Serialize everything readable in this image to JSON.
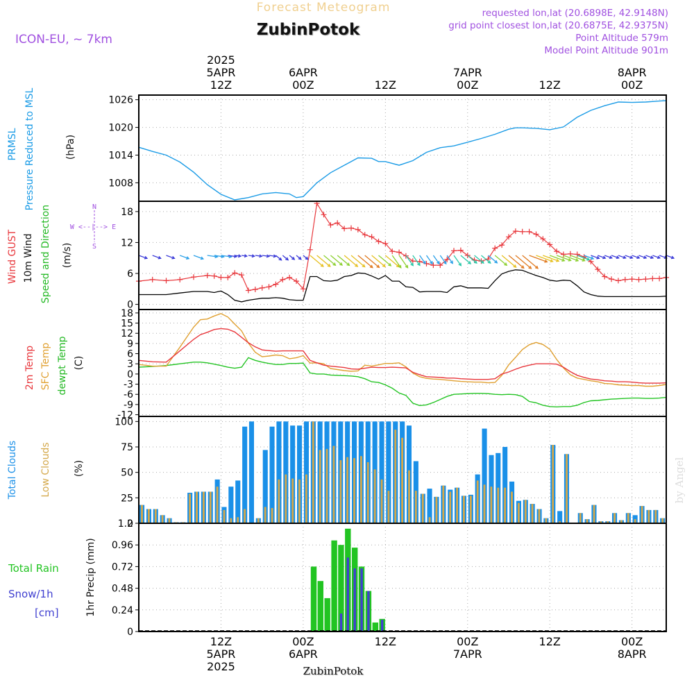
{
  "header": {
    "subtitle": "Forecast Meteogram",
    "location": "ZubinPotok",
    "model": "ICON-EU, ~ 7km",
    "requested": "requested lon,lat (20.6898E, 42.9148N)",
    "closest": "grid point closest lon,lat (20.6875E, 42.9375N)",
    "point_alt": "Point Altitude 579m",
    "model_alt": "Model Point Altitude 901m",
    "footer": "ZubinPotok",
    "watermark": "by Angel"
  },
  "colors": {
    "pressure": "#1a9be6",
    "gust": "#e8363b",
    "wind": "#000000",
    "t2m": "#e8363b",
    "sfc": "#e0a030",
    "dew": "#22c422",
    "total_cloud": "#1a90e8",
    "low_cloud": "#d4a84a",
    "rain": "#22c422",
    "snow": "#4040d0",
    "purple": "#a050e0",
    "green_label": "#22b822"
  },
  "time_axis": {
    "top_labels": [
      {
        "t": 12,
        "lines": [
          "2025",
          "5APR",
          "12Z"
        ]
      },
      {
        "t": 24,
        "lines": [
          "6APR",
          "00Z"
        ]
      },
      {
        "t": 36,
        "lines": [
          "12Z"
        ]
      },
      {
        "t": 48,
        "lines": [
          "7APR",
          "00Z"
        ]
      },
      {
        "t": 60,
        "lines": [
          "12Z"
        ]
      },
      {
        "t": 72,
        "lines": [
          "8APR",
          "00Z"
        ]
      }
    ],
    "bottom_labels": [
      {
        "t": 12,
        "lines": [
          "12Z",
          "5APR",
          "2025"
        ]
      },
      {
        "t": 24,
        "lines": [
          "00Z",
          "6APR"
        ]
      },
      {
        "t": 36,
        "lines": [
          "12Z"
        ]
      },
      {
        "t": 48,
        "lines": [
          "00Z",
          "7APR"
        ]
      },
      {
        "t": 60,
        "lines": [
          "12Z"
        ]
      },
      {
        "t": 72,
        "lines": [
          "00Z",
          "8APR"
        ]
      }
    ]
  },
  "chart_data": [
    {
      "type": "line",
      "panel": "pressure",
      "labels": [
        "PRMSL",
        "Pressure Reduced to MSL",
        "(hPa)"
      ],
      "ylim": [
        1004,
        1027
      ],
      "yticks": [
        1008,
        1014,
        1020,
        1026
      ],
      "x": [
        0,
        2,
        4,
        6,
        8,
        10,
        12,
        14,
        16,
        18,
        20,
        22,
        23,
        24,
        26,
        28,
        30,
        32,
        34,
        35,
        36,
        38,
        40,
        42,
        44,
        46,
        48,
        50,
        52,
        54,
        55,
        56,
        58,
        60,
        62,
        64,
        66,
        68,
        70,
        72,
        74,
        76,
        77
      ],
      "series": [
        {
          "key": "prmsl",
          "values": [
            1015.7,
            1014.8,
            1014,
            1012.5,
            1010.3,
            1007.6,
            1005.5,
            1004.3,
            1004.8,
            1005.6,
            1005.9,
            1005.6,
            1004.8,
            1005,
            1008,
            1010.2,
            1011.8,
            1013.4,
            1013.3,
            1012.6,
            1012.6,
            1011.8,
            1012.8,
            1014.6,
            1015.6,
            1016,
            1016.8,
            1017.6,
            1018.5,
            1019.6,
            1019.9,
            1019.9,
            1019.8,
            1019.5,
            1020.1,
            1022.2,
            1023.7,
            1024.7,
            1025.5,
            1025.4,
            1025.5,
            1025.7,
            1025.8
          ]
        }
      ]
    },
    {
      "type": "line",
      "panel": "wind",
      "labels": [
        "Wind GUST",
        "10m Wind",
        "Speed and Direction",
        "(m/s)"
      ],
      "compass": [
        "N",
        "W <--|--> E",
        "S"
      ],
      "ylim": [
        -1,
        20
      ],
      "yticks": [
        0,
        6,
        12,
        18
      ],
      "x": [
        0,
        2,
        4,
        6,
        8,
        10,
        11,
        12,
        13,
        14,
        15,
        16,
        17,
        18,
        19,
        20,
        21,
        22,
        23,
        24,
        25,
        26,
        27,
        28,
        29,
        30,
        31,
        32,
        33,
        34,
        35,
        36,
        37,
        38,
        39,
        40,
        41,
        42,
        43,
        44,
        45,
        46,
        47,
        48,
        49,
        50,
        51,
        52,
        53,
        54,
        55,
        56,
        57,
        58,
        59,
        60,
        61,
        62,
        63,
        64,
        65,
        66,
        67,
        68,
        69,
        70,
        71,
        72,
        73,
        74,
        75,
        76,
        77
      ],
      "series": [
        {
          "key": "gust",
          "values": [
            4.5,
            4.8,
            4.6,
            4.8,
            5.3,
            5.6,
            5.5,
            5.2,
            5.2,
            6.1,
            5.7,
            2.7,
            2.9,
            3.2,
            3.4,
            3.9,
            4.8,
            5.2,
            4.5,
            3.0,
            10.6,
            19.6,
            17.4,
            15.4,
            15.8,
            14.7,
            14.8,
            14.5,
            13.5,
            13.1,
            12.2,
            11.8,
            10.3,
            10.1,
            9.4,
            8.4,
            8.3,
            7.9,
            7.6,
            7.6,
            8.7,
            10.4,
            10.5,
            9.5,
            8.6,
            8.4,
            8.8,
            10.9,
            11.5,
            13.1,
            14.2,
            14.1,
            14.1,
            13.6,
            12.7,
            11.6,
            10.3,
            9.7,
            9.8,
            9.7,
            9.2,
            8.3,
            6.8,
            5.4,
            4.9,
            4.6,
            4.8,
            4.9,
            4.8,
            4.9,
            5.0,
            5.0,
            5.2
          ]
        },
        {
          "key": "wind",
          "values": [
            1.9,
            1.9,
            1.9,
            2.2,
            2.5,
            2.5,
            2.3,
            2.6,
            1.9,
            0.8,
            0.5,
            0.8,
            1.0,
            1.2,
            1.2,
            1.3,
            1.2,
            0.9,
            0.8,
            0.8,
            5.4,
            5.4,
            4.6,
            4.5,
            4.7,
            5.4,
            5.6,
            6.1,
            6.0,
            5.5,
            4.9,
            5.6,
            4.5,
            4.5,
            3.4,
            3.3,
            2.4,
            2.5,
            2.5,
            2.5,
            2.3,
            3.4,
            3.6,
            3.2,
            3.2,
            3.2,
            3.1,
            4.6,
            5.9,
            6.4,
            6.7,
            6.6,
            6.1,
            5.6,
            5.2,
            4.7,
            4.5,
            4.7,
            4.6,
            3.6,
            2.4,
            1.9,
            1.6,
            1.5,
            1.5,
            1.5,
            1.5,
            1.5,
            1.5,
            1.5,
            1.5,
            1.5,
            1.6
          ]
        }
      ]
    },
    {
      "type": "line",
      "panel": "temperature",
      "labels": [
        "2m Temp",
        "SFC Temp",
        "dewpt Temp",
        "(C)"
      ],
      "ylim": [
        -12.5,
        19
      ],
      "yticks": [
        -12,
        -9,
        -6,
        -3,
        0,
        3,
        6,
        9,
        12,
        15,
        18
      ],
      "x": [
        0,
        2,
        4,
        6,
        8,
        9,
        10,
        11,
        12,
        13,
        14,
        15,
        16,
        17,
        18,
        19,
        20,
        21,
        22,
        23,
        24,
        25,
        26,
        27,
        28,
        29,
        30,
        31,
        32,
        33,
        34,
        35,
        36,
        37,
        38,
        39,
        40,
        41,
        42,
        43,
        44,
        45,
        46,
        47,
        48,
        49,
        50,
        51,
        52,
        53,
        54,
        55,
        56,
        57,
        58,
        59,
        60,
        61,
        62,
        63,
        64,
        65,
        66,
        67,
        68,
        69,
        70,
        71,
        72,
        73,
        74,
        75,
        76,
        77
      ],
      "series": [
        {
          "key": "t2m",
          "values": [
            4.0,
            3.6,
            3.5,
            6.8,
            10.2,
            11.6,
            12.3,
            13.1,
            13.4,
            13.2,
            12.4,
            10.8,
            9.2,
            8.0,
            7.1,
            6.9,
            6.7,
            6.8,
            6.8,
            6.8,
            6.8,
            4.0,
            3.3,
            2.6,
            2.3,
            2.1,
            1.9,
            1.5,
            1.4,
            1.7,
            2.0,
            1.9,
            1.9,
            2.0,
            1.9,
            1.8,
            0.5,
            -0.2,
            -0.8,
            -0.9,
            -1.0,
            -1.2,
            -1.2,
            -1.4,
            -1.5,
            -1.6,
            -1.6,
            -1.6,
            -1.4,
            0.0,
            0.6,
            1.4,
            2.1,
            2.6,
            3.0,
            3.0,
            3.0,
            2.9,
            2.0,
            0.7,
            -0.4,
            -1.0,
            -1.5,
            -1.7,
            -2.0,
            -2.1,
            -2.3,
            -2.3,
            -2.4,
            -2.6,
            -2.7,
            -2.7,
            -2.7,
            -2.6
          ]
        },
        {
          "key": "sfc",
          "values": [
            2.8,
            2.3,
            2.3,
            7.9,
            13.8,
            16.0,
            16.2,
            17.1,
            17.8,
            16.8,
            14.7,
            12.7,
            9.1,
            6.4,
            5.1,
            5.3,
            5.6,
            5.4,
            4.5,
            4.8,
            5.4,
            3.2,
            3.3,
            3.0,
            1.6,
            1.3,
            1.0,
            0.8,
            0.9,
            2.6,
            2.3,
            2.7,
            3.1,
            3.1,
            3.3,
            2.1,
            0.3,
            -0.8,
            -1.3,
            -1.5,
            -1.6,
            -1.8,
            -2.0,
            -2.2,
            -2.3,
            -2.4,
            -2.4,
            -2.6,
            -2.5,
            -0.4,
            2.7,
            4.9,
            7.2,
            8.6,
            9.3,
            8.7,
            7.3,
            4.3,
            1.8,
            -0.2,
            -1.2,
            -1.6,
            -2.0,
            -2.3,
            -2.8,
            -2.9,
            -3.2,
            -3.3,
            -3.4,
            -3.4,
            -3.6,
            -3.6,
            -3.4,
            -3.1
          ]
        },
        {
          "key": "dew",
          "values": [
            2.0,
            2.2,
            2.5,
            3.0,
            3.5,
            3.5,
            3.3,
            2.9,
            2.5,
            2.0,
            1.7,
            2.0,
            4.8,
            4.0,
            3.5,
            3.1,
            2.8,
            2.8,
            3.1,
            3.1,
            3.2,
            0.3,
            0.0,
            0.0,
            -0.3,
            -0.4,
            -0.5,
            -0.6,
            -0.8,
            -1.4,
            -2.3,
            -2.5,
            -3.2,
            -4.2,
            -5.6,
            -6.3,
            -8.6,
            -9.3,
            -9.1,
            -8.4,
            -7.5,
            -6.6,
            -6.0,
            -5.9,
            -5.8,
            -5.7,
            -5.7,
            -5.8,
            -6.0,
            -6.1,
            -6.0,
            -6.1,
            -6.6,
            -8.1,
            -8.5,
            -9.2,
            -9.6,
            -9.7,
            -9.6,
            -9.6,
            -9.2,
            -8.4,
            -7.9,
            -7.8,
            -7.6,
            -7.4,
            -7.3,
            -7.2,
            -7.1,
            -7.1,
            -7.2,
            -7.2,
            -7.1,
            -6.9
          ]
        }
      ]
    },
    {
      "type": "bar",
      "panel": "clouds",
      "labels": [
        "Total Clouds",
        "Low Clouds",
        "(%)"
      ],
      "ylim": [
        0,
        105
      ],
      "yticks": [
        0,
        25,
        50,
        75,
        100
      ],
      "x": [
        0,
        1,
        2,
        3,
        4,
        5,
        6,
        7,
        8,
        9,
        10,
        11,
        12,
        13,
        14,
        15,
        16,
        17,
        18,
        19,
        20,
        21,
        22,
        23,
        24,
        25,
        26,
        27,
        28,
        29,
        30,
        31,
        32,
        33,
        34,
        35,
        36,
        37,
        38,
        39,
        40,
        41,
        42,
        43,
        44,
        45,
        46,
        47,
        48,
        49,
        50,
        51,
        52,
        53,
        54,
        55,
        56,
        57,
        58,
        59,
        60,
        61,
        62,
        63,
        64,
        65,
        66,
        67,
        68,
        69,
        70,
        71,
        72,
        73,
        74,
        75,
        76
      ],
      "series": [
        {
          "key": "total",
          "values": [
            18,
            14,
            14,
            8,
            5,
            1,
            1,
            30,
            31,
            31,
            31,
            43,
            16,
            36,
            42,
            95,
            100,
            5,
            72,
            95,
            100,
            100,
            96,
            96,
            100,
            100,
            100,
            100,
            100,
            100,
            100,
            100,
            100,
            100,
            100,
            100,
            100,
            100,
            100,
            96,
            61,
            29,
            34,
            26,
            37,
            33,
            35,
            27,
            28,
            48,
            93,
            67,
            69,
            75,
            41,
            22,
            23,
            19,
            14,
            5,
            77,
            12,
            68,
            0,
            10,
            4,
            18,
            2,
            2,
            10,
            3,
            10,
            8,
            17,
            13,
            13,
            5
          ]
        },
        {
          "key": "low",
          "values": [
            18,
            14,
            14,
            8,
            5,
            1,
            1,
            29,
            31,
            31,
            31,
            36,
            13,
            5,
            6,
            14,
            0,
            5,
            16,
            15,
            43,
            48,
            44,
            43,
            48,
            100,
            72,
            73,
            76,
            62,
            65,
            64,
            66,
            60,
            53,
            43,
            32,
            92,
            84,
            52,
            32,
            29,
            6,
            26,
            37,
            31,
            35,
            27,
            27,
            42,
            38,
            36,
            35,
            35,
            31,
            20,
            23,
            19,
            14,
            5,
            77,
            2,
            68,
            0,
            10,
            4,
            18,
            2,
            2,
            10,
            3,
            10,
            4,
            17,
            13,
            13,
            5
          ]
        }
      ]
    },
    {
      "type": "bar",
      "panel": "precip",
      "labels": [
        "Total Rain",
        "Snow/1h",
        "[cm]",
        "1hr Precip (mm)"
      ],
      "ylim": [
        0,
        1.2
      ],
      "yticks": [
        0,
        0.24,
        0.48,
        0.72,
        0.96,
        1.2
      ],
      "x": [
        25,
        26,
        27,
        28,
        29,
        30,
        31,
        32,
        33,
        34,
        35,
        36
      ],
      "series": [
        {
          "key": "rain",
          "values": [
            0.72,
            0.56,
            0.37,
            1.01,
            0.96,
            1.14,
            0.93,
            0.72,
            0.45,
            0.1,
            0.14,
            0
          ]
        },
        {
          "key": "snow",
          "values": [
            0,
            0,
            0,
            0,
            0.2,
            0.82,
            0.7,
            0.7,
            0.45,
            0,
            0.13,
            0
          ]
        }
      ]
    }
  ]
}
